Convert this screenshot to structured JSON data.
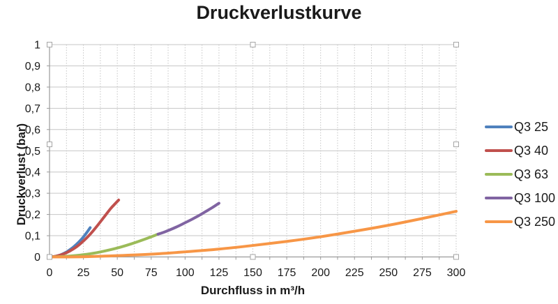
{
  "title": "Druckverlustkurve",
  "colors": {
    "text": "#1a1a1a",
    "axis_line": "#9a9a9a",
    "gridline_major": "#c6c6c6",
    "gridline_minor_dotted": "#c4c4c4",
    "handle_fill": "#ffffff",
    "handle_border": "#a6a6a6",
    "background": "#ffffff"
  },
  "selection_handles_visible": true,
  "chart_data": {
    "type": "line",
    "title": "Druckverlustkurve",
    "xlabel": "Durchfluss in m³/h",
    "ylabel": "Druckverlust (bar)",
    "xlim": [
      0,
      300
    ],
    "ylim": [
      0,
      1
    ],
    "grid": true,
    "legend_position": "right",
    "x_tick_values": [
      0,
      25,
      50,
      75,
      100,
      125,
      150,
      175,
      200,
      225,
      250,
      275,
      300
    ],
    "x_tick_labels": [
      "0",
      "25",
      "50",
      "75",
      "100",
      "125",
      "150",
      "175",
      "200",
      "225",
      "250",
      "275",
      "300"
    ],
    "x_minor_step": 12.5,
    "y_tick_values": [
      0,
      0.1,
      0.2,
      0.3,
      0.4,
      0.5,
      0.6,
      0.7,
      0.8,
      0.9,
      1
    ],
    "y_tick_labels": [
      "0",
      "0,1",
      "0,2",
      "0,3",
      "0,4",
      "0,5",
      "0,6",
      "0,7",
      "0,8",
      "0,9",
      "1"
    ],
    "series": [
      {
        "name": "Q3 25",
        "color": "#4F81BD",
        "points": [
          [
            0,
            0
          ],
          [
            2.5,
            0.001
          ],
          [
            5,
            0.004
          ],
          [
            7.5,
            0.008
          ],
          [
            10,
            0.015
          ],
          [
            12.5,
            0.023
          ],
          [
            15,
            0.034
          ],
          [
            17.5,
            0.046
          ],
          [
            20,
            0.06
          ],
          [
            22.5,
            0.076
          ],
          [
            25,
            0.094
          ],
          [
            27.5,
            0.115
          ],
          [
            30,
            0.138
          ]
        ]
      },
      {
        "name": "Q3 40",
        "color": "#C0504D",
        "points": [
          [
            0,
            0
          ],
          [
            5,
            0.004
          ],
          [
            10,
            0.013
          ],
          [
            15,
            0.028
          ],
          [
            20,
            0.048
          ],
          [
            25,
            0.075
          ],
          [
            30,
            0.107
          ],
          [
            35,
            0.145
          ],
          [
            40,
            0.186
          ],
          [
            45,
            0.227
          ],
          [
            48,
            0.248
          ],
          [
            51,
            0.268
          ]
        ]
      },
      {
        "name": "Q3 63",
        "color": "#9BBB59",
        "points": [
          [
            0,
            0
          ],
          [
            10,
            0.002
          ],
          [
            20,
            0.007
          ],
          [
            30,
            0.015
          ],
          [
            40,
            0.027
          ],
          [
            50,
            0.042
          ],
          [
            60,
            0.061
          ],
          [
            70,
            0.083
          ],
          [
            80,
            0.107
          ]
        ]
      },
      {
        "name": "Q3 100",
        "color": "#8064A2",
        "points": [
          [
            80,
            0.107
          ],
          [
            85,
            0.118
          ],
          [
            90,
            0.131
          ],
          [
            95,
            0.145
          ],
          [
            100,
            0.161
          ],
          [
            105,
            0.177
          ],
          [
            110,
            0.194
          ],
          [
            115,
            0.213
          ],
          [
            120,
            0.232
          ],
          [
            125,
            0.253
          ]
        ]
      },
      {
        "name": "Q3 250",
        "color": "#F79646",
        "points": [
          [
            0,
            0
          ],
          [
            25,
            0.001
          ],
          [
            50,
            0.006
          ],
          [
            75,
            0.013
          ],
          [
            100,
            0.024
          ],
          [
            125,
            0.037
          ],
          [
            150,
            0.054
          ],
          [
            175,
            0.073
          ],
          [
            200,
            0.095
          ],
          [
            225,
            0.121
          ],
          [
            250,
            0.149
          ],
          [
            275,
            0.181
          ],
          [
            300,
            0.215
          ]
        ]
      }
    ]
  }
}
